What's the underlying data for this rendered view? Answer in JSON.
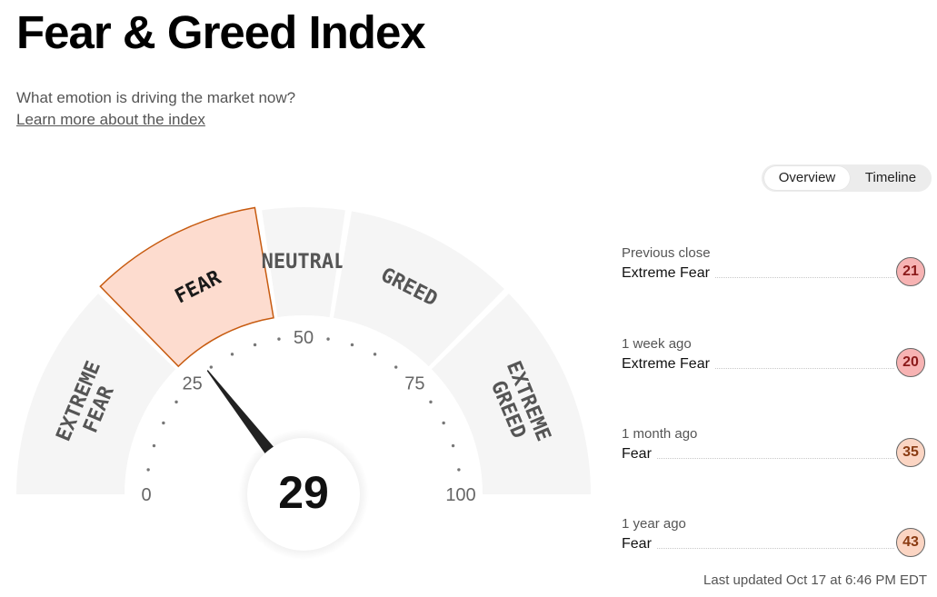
{
  "header": {
    "title": "Fear & Greed Index",
    "subtitle": "What emotion is driving the market now?",
    "learn_link": "Learn more about the index"
  },
  "toggle": {
    "overview": "Overview",
    "timeline": "Timeline",
    "active": "overview"
  },
  "gauge": {
    "value": 29,
    "min": 0,
    "max": 100,
    "active_segment": 1,
    "segments": [
      {
        "lines": [
          "EXTREME",
          "FEAR"
        ],
        "from": 0,
        "to": 25
      },
      {
        "lines": [
          "FEAR"
        ],
        "from": 25,
        "to": 45
      },
      {
        "lines": [
          "NEUTRAL"
        ],
        "from": 45,
        "to": 55
      },
      {
        "lines": [
          "GREED"
        ],
        "from": 55,
        "to": 75
      },
      {
        "lines": [
          "EXTREME",
          "GREED"
        ],
        "from": 75,
        "to": 100
      }
    ],
    "tick_labels": [
      "0",
      "25",
      "50",
      "75",
      "100"
    ],
    "colors": {
      "segment": "#f5f5f5",
      "active_fill": "#fddccf",
      "active_stroke": "#c75b10",
      "needle": "#222222"
    }
  },
  "history": [
    {
      "period": "Previous close",
      "rating": "Extreme Fear",
      "value": "21",
      "color": "#f7b3b3",
      "text_color": "#8b1a1a"
    },
    {
      "period": "1 week ago",
      "rating": "Extreme Fear",
      "value": "20",
      "color": "#f7b3b3",
      "text_color": "#8b1a1a"
    },
    {
      "period": "1 month ago",
      "rating": "Fear",
      "value": "35",
      "color": "#fbd5c3",
      "text_color": "#8a3b12"
    },
    {
      "period": "1 year ago",
      "rating": "Fear",
      "value": "43",
      "color": "#fbd5c3",
      "text_color": "#8a3b12"
    }
  ],
  "last_updated": "Last updated Oct 17 at 6:46 PM EDT"
}
